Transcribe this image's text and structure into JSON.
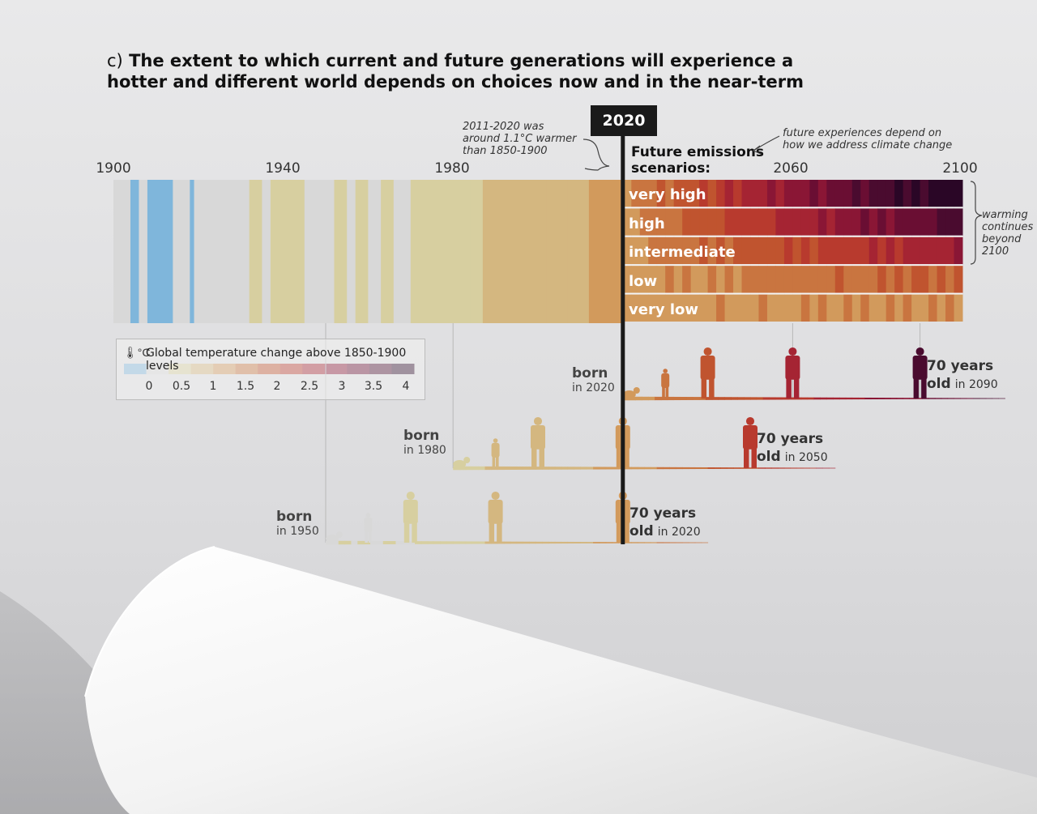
{
  "title": {
    "tag": "c)",
    "text_line1": "The extent to which current and future generations will experience a",
    "text_line2": "hotter and different world depends on choices now and in the near-term"
  },
  "highlight_year": "2020",
  "notes": {
    "past": [
      "2011-2020 was",
      "around 1.1°C warmer",
      "than 1850-1900"
    ],
    "future": [
      "future experiences depend on",
      "how we address climate change"
    ],
    "beyond": [
      "warming",
      "continues",
      "beyond",
      "2100"
    ]
  },
  "future_title": [
    "Future emissions",
    "scenarios:"
  ],
  "legend": {
    "title": "Global temperature change above 1850-1900 levels",
    "unit": "°C",
    "ticks": [
      "0",
      "0.5",
      "1",
      "1.5",
      "2",
      "2.5",
      "3",
      "3.5",
      "4"
    ]
  },
  "colors": {
    "scale": [
      "#7fb6db",
      "#d8d8d8",
      "#d7cfa0",
      "#d4b780",
      "#d29a5c",
      "#c97540",
      "#c0542f",
      "#b83a2e",
      "#a52433",
      "#8a1635",
      "#6a0e33",
      "#4a0b2f",
      "#2a0626"
    ]
  },
  "cohorts": [
    {
      "born_word": "born",
      "born_year": "in 1950",
      "age_num": "70 years",
      "age_word": "old",
      "age_year": "in 2020"
    },
    {
      "born_word": "born",
      "born_year": "in 1980",
      "age_num": "70 years",
      "age_word": "old",
      "age_year": "in 2050"
    },
    {
      "born_word": "born",
      "born_year": "in 2020",
      "age_num": "70 years",
      "age_word": "old",
      "age_year": "in 2090"
    }
  ],
  "chart_data": {
    "type": "heatmap",
    "x_axis": {
      "range": [
        1900,
        2100
      ],
      "ticks": [
        "1900",
        "1940",
        "1980",
        "2020",
        "2060",
        "2100"
      ]
    },
    "colorbar": {
      "range": [
        -0.25,
        4.25
      ],
      "unit": "°C"
    },
    "historical_anomaly_2011_2020": 1.1,
    "historical_series": [
      {
        "start": 1900,
        "end": 1904,
        "value": 0.15
      },
      {
        "start": 1904,
        "end": 1906,
        "value": -0.2
      },
      {
        "start": 1906,
        "end": 1908,
        "value": 0.1
      },
      {
        "start": 1908,
        "end": 1914,
        "value": -0.25
      },
      {
        "start": 1914,
        "end": 1918,
        "value": 0.15
      },
      {
        "start": 1918,
        "end": 1919,
        "value": -0.15
      },
      {
        "start": 1919,
        "end": 1927,
        "value": 0.15
      },
      {
        "start": 1927,
        "end": 1929,
        "value": 0.35
      },
      {
        "start": 1929,
        "end": 1932,
        "value": 0.3
      },
      {
        "start": 1932,
        "end": 1935,
        "value": 0.45
      },
      {
        "start": 1935,
        "end": 1937,
        "value": 0.35
      },
      {
        "start": 1937,
        "end": 1945,
        "value": 0.45
      },
      {
        "start": 1945,
        "end": 1952,
        "value": 0.35
      },
      {
        "start": 1952,
        "end": 1955,
        "value": 0.45
      },
      {
        "start": 1955,
        "end": 1957,
        "value": 0.4
      },
      {
        "start": 1957,
        "end": 1960,
        "value": 0.45
      },
      {
        "start": 1960,
        "end": 1963,
        "value": 0.4
      },
      {
        "start": 1963,
        "end": 1966,
        "value": 0.45
      },
      {
        "start": 1966,
        "end": 1970,
        "value": 0.4
      },
      {
        "start": 1970,
        "end": 1975,
        "value": 0.5
      },
      {
        "start": 1975,
        "end": 1980,
        "value": 0.55
      },
      {
        "start": 1980,
        "end": 1984,
        "value": 0.7
      },
      {
        "start": 1984,
        "end": 1987,
        "value": 0.75
      },
      {
        "start": 1987,
        "end": 1990,
        "value": 0.8
      },
      {
        "start": 1990,
        "end": 1993,
        "value": 0.85
      },
      {
        "start": 1993,
        "end": 1997,
        "value": 0.9
      },
      {
        "start": 1997,
        "end": 2002,
        "value": 1.0
      },
      {
        "start": 2002,
        "end": 2007,
        "value": 1.05
      },
      {
        "start": 2007,
        "end": 2012,
        "value": 1.1
      },
      {
        "start": 2012,
        "end": 2016,
        "value": 1.15
      },
      {
        "start": 2016,
        "end": 2020,
        "value": 1.25
      }
    ],
    "scenarios": [
      {
        "name": "very high",
        "start_value": 1.3,
        "end_value": 4.3
      },
      {
        "name": "high",
        "start_value": 1.3,
        "end_value": 3.7
      },
      {
        "name": "intermediate",
        "start_value": 1.3,
        "end_value": 2.8
      },
      {
        "name": "low",
        "start_value": 1.3,
        "end_value": 1.9
      },
      {
        "name": "very low",
        "start_value": 1.3,
        "end_value": 1.5
      }
    ],
    "cohorts": [
      {
        "born": 1950,
        "age70": 2020
      },
      {
        "born": 1980,
        "age70": 2050
      },
      {
        "born": 2020,
        "age70": 2090
      }
    ]
  }
}
